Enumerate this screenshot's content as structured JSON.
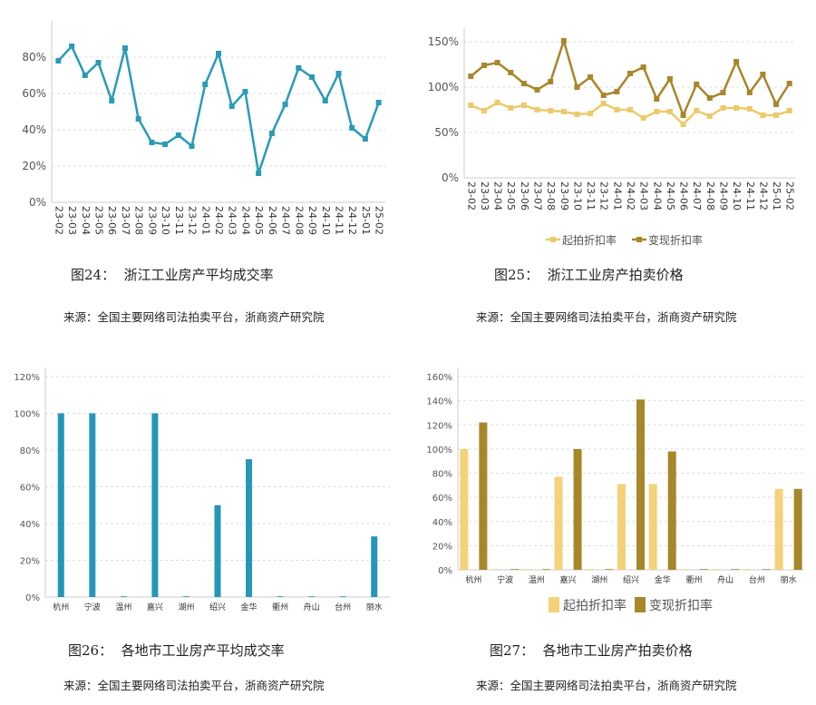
{
  "captions": [
    {
      "title": "图24：  浙江工业房产平均成交率",
      "source": "来源：全国主要网络司法拍卖平台，浙商资产研究院"
    },
    {
      "title": "图25：  浙江工业房产拍卖价格",
      "source": "来源：全国主要网络司法拍卖平台，浙商资产研究院"
    },
    {
      "title": "图26：  各地市工业房产平均成交率",
      "source": "来源：全国主要网络司法拍卖平台，浙商资产研究院"
    },
    {
      "title": "图27：  各地市工业房产拍卖价格",
      "source": "来源：全国主要网络司法拍卖平台，浙商资产研究院"
    }
  ],
  "chart_data": [
    {
      "type": "line",
      "categories": [
        "23-02",
        "23-03",
        "23-04",
        "23-05",
        "23-06",
        "23-07",
        "23-08",
        "23-09",
        "23-10",
        "23-11",
        "23-12",
        "24-01",
        "24-02",
        "24-03",
        "24-04",
        "24-05",
        "24-06",
        "24-07",
        "24-08",
        "24-09",
        "24-10",
        "24-11",
        "24-12",
        "25-01",
        "25-02"
      ],
      "series": [
        {
          "values": [
            78,
            86,
            70,
            77,
            56,
            85,
            46,
            33,
            32,
            37,
            31,
            65,
            82,
            53,
            61,
            16,
            38,
            54,
            74,
            69,
            56,
            71,
            41,
            35,
            55
          ],
          "color": "#2a9bb5"
        }
      ],
      "ylim": [
        0,
        95
      ],
      "yticks": [
        0,
        20,
        40,
        60,
        80
      ],
      "grid": true
    },
    {
      "type": "line",
      "categories": [
        "23-02",
        "23-03",
        "23-04",
        "23-05",
        "23-06",
        "23-07",
        "23-08",
        "23-09",
        "23-10",
        "23-11",
        "23-12",
        "24-01",
        "24-02",
        "24-03",
        "24-04",
        "24-05",
        "24-06",
        "24-07",
        "24-08",
        "24-09",
        "24-10",
        "24-11",
        "24-12",
        "25-01",
        "25-02"
      ],
      "series": [
        {
          "name": "起拍折扣率",
          "values": [
            80,
            74,
            83,
            77,
            80,
            75,
            74,
            73,
            70,
            71,
            82,
            75,
            75,
            66,
            73,
            73,
            59,
            74,
            68,
            77,
            77,
            76,
            69,
            69,
            74
          ],
          "color": "#ecc96b"
        },
        {
          "name": "变现折扣率",
          "values": [
            112,
            124,
            127,
            116,
            104,
            97,
            106,
            151,
            100,
            111,
            91,
            95,
            115,
            122,
            87,
            109,
            69,
            103,
            88,
            94,
            128,
            94,
            114,
            81,
            104
          ],
          "color": "#a8862a"
        }
      ],
      "ylim": [
        0,
        155
      ],
      "yticks": [
        0,
        50,
        100,
        150
      ],
      "grid": true,
      "legend": "bottom"
    },
    {
      "type": "bar",
      "categories": [
        "杭州",
        "宁波",
        "温州",
        "嘉兴",
        "湖州",
        "绍兴",
        "金华",
        "衢州",
        "舟山",
        "台州",
        "丽水"
      ],
      "series": [
        {
          "values": [
            100,
            100,
            0,
            100,
            0,
            50,
            75,
            0,
            0,
            0,
            33
          ],
          "color": "#2596b8"
        }
      ],
      "ylim": [
        0,
        120
      ],
      "yticks": [
        0,
        20,
        40,
        60,
        80,
        100,
        120
      ],
      "grid": true
    },
    {
      "type": "bar",
      "categories": [
        "杭州",
        "宁波",
        "温州",
        "嘉兴",
        "湖州",
        "绍兴",
        "金华",
        "衢州",
        "舟山",
        "台州",
        "丽水"
      ],
      "series": [
        {
          "name": "起拍折扣率",
          "values": [
            100,
            0,
            0,
            77,
            0,
            71,
            71,
            0,
            0,
            0,
            67
          ],
          "color": "#f3d27a"
        },
        {
          "name": "变现折扣率",
          "values": [
            122,
            0,
            0,
            100,
            0,
            141,
            98,
            0,
            0,
            0,
            67
          ],
          "color": "#a8862a"
        }
      ],
      "ylim": [
        0,
        160
      ],
      "yticks": [
        0,
        20,
        40,
        60,
        80,
        100,
        120,
        140,
        160
      ],
      "grid": true,
      "legend": "bottom"
    }
  ]
}
